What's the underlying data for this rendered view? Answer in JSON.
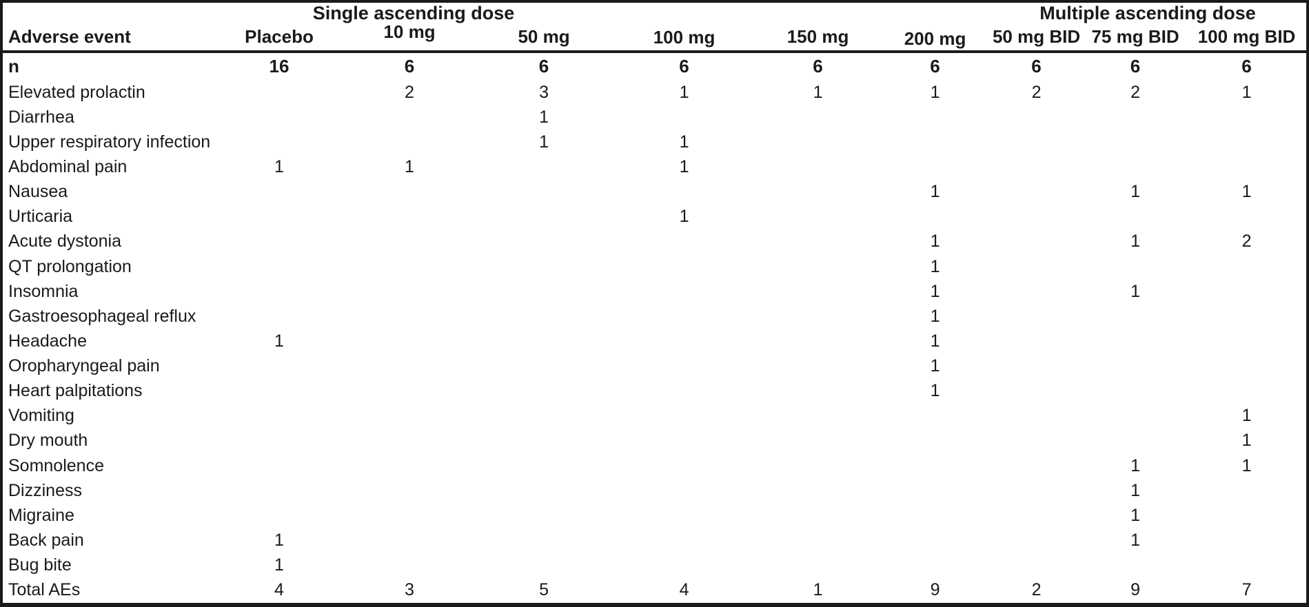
{
  "page": {
    "background": "#ffffff",
    "colors": {
      "border": "#1a1a1a",
      "text": "#1a1a1a"
    }
  },
  "table": {
    "row_header_label": "Adverse event",
    "groups": [
      {
        "label": "Single ascending dose",
        "columns": [
          "Placebo",
          "10 mg",
          "50 mg",
          "100 mg",
          "150 mg",
          "200 mg"
        ]
      },
      {
        "label": "Multiple ascending dose",
        "columns": [
          "50 mg BID",
          "75 mg BID",
          "100 mg BID"
        ]
      }
    ],
    "columns": [
      "Placebo",
      "10 mg",
      "50 mg",
      "100 mg",
      "150 mg",
      "200 mg",
      "50 mg BID",
      "75 mg BID",
      "100 mg BID"
    ],
    "n_row": {
      "label": "n",
      "values": [
        "16",
        "6",
        "6",
        "6",
        "6",
        "6",
        "6",
        "6",
        "6"
      ]
    },
    "rows": [
      {
        "label": "Elevated prolactin",
        "values": [
          "",
          "2",
          "3",
          "1",
          "1",
          "1",
          "2",
          "2",
          "1"
        ]
      },
      {
        "label": "Diarrhea",
        "values": [
          "",
          "",
          "1",
          "",
          "",
          "",
          "",
          "",
          ""
        ]
      },
      {
        "label": "Upper respiratory infection",
        "values": [
          "",
          "",
          "1",
          "1",
          "",
          "",
          "",
          "",
          ""
        ]
      },
      {
        "label": "Abdominal pain",
        "values": [
          "1",
          "1",
          "",
          "1",
          "",
          "",
          "",
          "",
          ""
        ]
      },
      {
        "label": "Nausea",
        "values": [
          "",
          "",
          "",
          "",
          "",
          "1",
          "",
          "1",
          "1"
        ]
      },
      {
        "label": "Urticaria",
        "values": [
          "",
          "",
          "",
          "1",
          "",
          "",
          "",
          "",
          ""
        ]
      },
      {
        "label": "Acute dystonia",
        "values": [
          "",
          "",
          "",
          "",
          "",
          "1",
          "",
          "1",
          "2"
        ]
      },
      {
        "label": "QT prolongation",
        "values": [
          "",
          "",
          "",
          "",
          "",
          "1",
          "",
          "",
          ""
        ]
      },
      {
        "label": "Insomnia",
        "values": [
          "",
          "",
          "",
          "",
          "",
          "1",
          "",
          "1",
          ""
        ]
      },
      {
        "label": "Gastroesophageal reflux",
        "values": [
          "",
          "",
          "",
          "",
          "",
          "1",
          "",
          "",
          ""
        ]
      },
      {
        "label": "Headache",
        "values": [
          "1",
          "",
          "",
          "",
          "",
          "1",
          "",
          "",
          ""
        ]
      },
      {
        "label": "Oropharyngeal pain",
        "values": [
          "",
          "",
          "",
          "",
          "",
          "1",
          "",
          "",
          ""
        ]
      },
      {
        "label": "Heart palpitations",
        "values": [
          "",
          "",
          "",
          "",
          "",
          "1",
          "",
          "",
          ""
        ]
      },
      {
        "label": "Vomiting",
        "values": [
          "",
          "",
          "",
          "",
          "",
          "",
          "",
          "",
          "1"
        ]
      },
      {
        "label": "Dry mouth",
        "values": [
          "",
          "",
          "",
          "",
          "",
          "",
          "",
          "",
          "1"
        ]
      },
      {
        "label": "Somnolence",
        "values": [
          "",
          "",
          "",
          "",
          "",
          "",
          "",
          "1",
          "1"
        ]
      },
      {
        "label": "Dizziness",
        "values": [
          "",
          "",
          "",
          "",
          "",
          "",
          "",
          "1",
          ""
        ]
      },
      {
        "label": "Migraine",
        "values": [
          "",
          "",
          "",
          "",
          "",
          "",
          "",
          "1",
          ""
        ]
      },
      {
        "label": "Back pain",
        "values": [
          "1",
          "",
          "",
          "",
          "",
          "",
          "",
          "1",
          ""
        ]
      },
      {
        "label": "Bug bite",
        "values": [
          "1",
          "",
          "",
          "",
          "",
          "",
          "",
          "",
          ""
        ]
      },
      {
        "label": "Total AEs",
        "values": [
          "4",
          "3",
          "5",
          "4",
          "1",
          "9",
          "2",
          "9",
          "7"
        ]
      }
    ]
  }
}
